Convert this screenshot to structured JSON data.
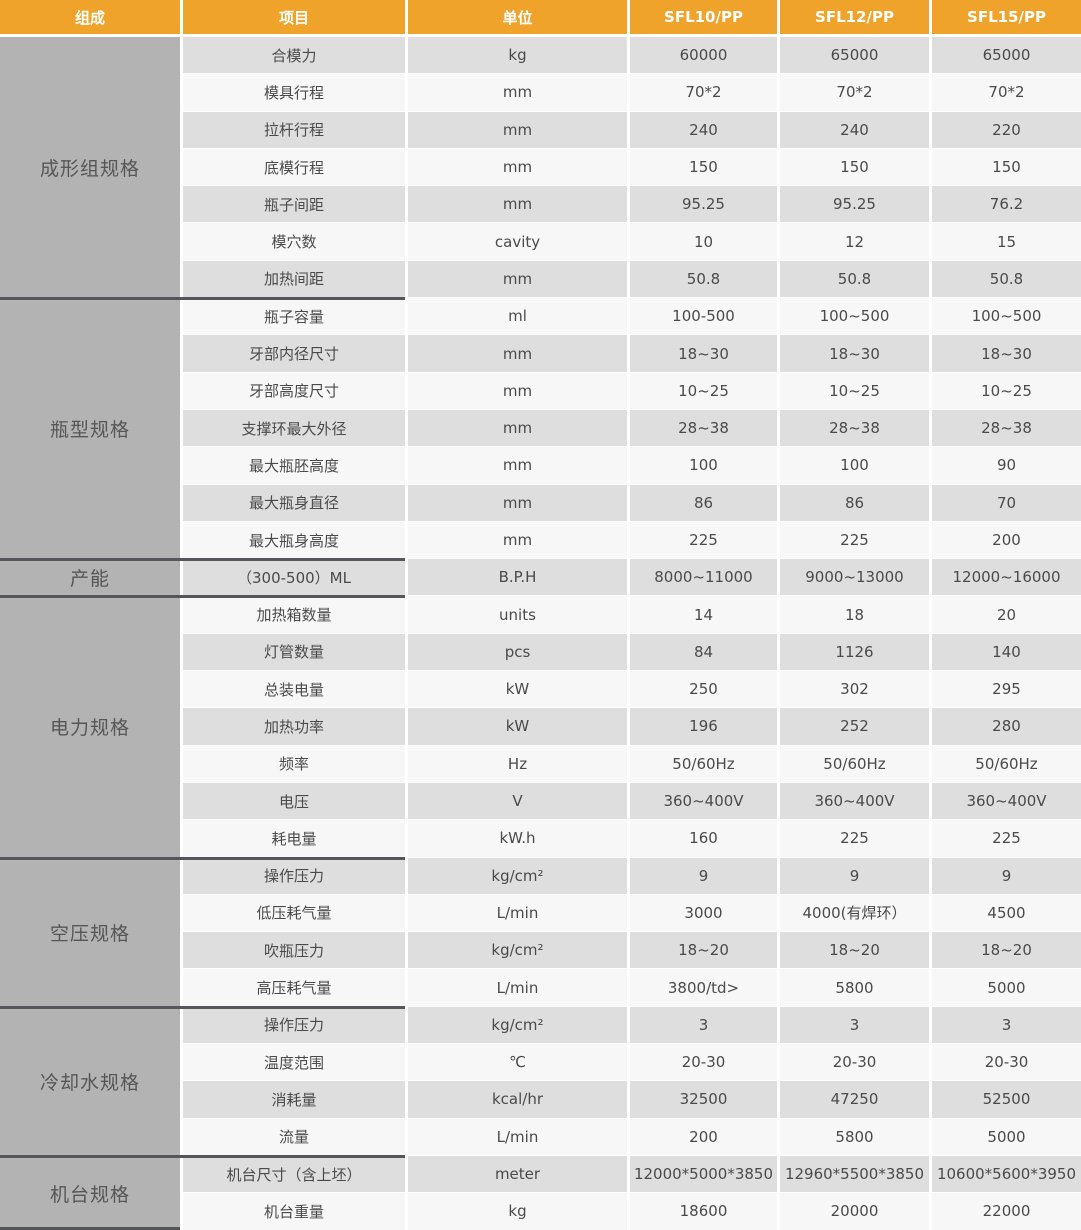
{
  "colors": {
    "header_bg": "#EFA32B",
    "header_text": "#FFFFFF",
    "group_bg": "#B3B3B3",
    "row_odd": "#DEDEDE",
    "row_even": "#F7F7F7",
    "cell_text": "#4A4A4A",
    "divider": "#55565C"
  },
  "header": {
    "columns": [
      "组成",
      "项目",
      "单位",
      "SFL10/PP",
      "SFL12/PP",
      "SFL15/PP"
    ]
  },
  "groups": [
    {
      "name": "成形组规格",
      "rows": [
        {
          "item": "合模力",
          "unit": "kg",
          "values": [
            "60000",
            "65000",
            "65000"
          ]
        },
        {
          "item": "模具行程",
          "unit": "mm",
          "values": [
            "70*2",
            "70*2",
            "70*2"
          ]
        },
        {
          "item": "拉杆行程",
          "unit": "mm",
          "values": [
            "240",
            "240",
            "220"
          ]
        },
        {
          "item": "底模行程",
          "unit": "mm",
          "values": [
            "150",
            "150",
            "150"
          ]
        },
        {
          "item": "瓶子间距",
          "unit": "mm",
          "values": [
            "95.25",
            "95.25",
            "76.2"
          ]
        },
        {
          "item": "模穴数",
          "unit": "cavity",
          "values": [
            "10",
            "12",
            "15"
          ]
        },
        {
          "item": "加热间距",
          "unit": "mm",
          "values": [
            "50.8",
            "50.8",
            "50.8"
          ]
        }
      ]
    },
    {
      "name": "瓶型规格",
      "rows": [
        {
          "item": "瓶子容量",
          "unit": "ml",
          "values": [
            "100-500",
            "100~500",
            "100~500"
          ]
        },
        {
          "item": "牙部内径尺寸",
          "unit": "mm",
          "values": [
            "18~30",
            "18~30",
            "18~30"
          ]
        },
        {
          "item": "牙部高度尺寸",
          "unit": "mm",
          "values": [
            "10~25",
            "10~25",
            "10~25"
          ]
        },
        {
          "item": "支撑环最大外径",
          "unit": "mm",
          "values": [
            "28~38",
            "28~38",
            "28~38"
          ]
        },
        {
          "item": "最大瓶胚高度",
          "unit": "mm",
          "values": [
            "100",
            "100",
            "90"
          ]
        },
        {
          "item": "最大瓶身直径",
          "unit": "mm",
          "values": [
            "86",
            "86",
            "70"
          ]
        },
        {
          "item": "最大瓶身高度",
          "unit": "mm",
          "values": [
            "225",
            "225",
            "200"
          ]
        }
      ]
    },
    {
      "name": "产能",
      "rows": [
        {
          "item": "（300-500）ML",
          "unit": "B.P.H",
          "values": [
            "8000~11000",
            "9000~13000",
            "12000~16000"
          ]
        }
      ]
    },
    {
      "name": "电力规格",
      "rows": [
        {
          "item": "加热箱数量",
          "unit": "units",
          "values": [
            "14",
            "18",
            "20"
          ]
        },
        {
          "item": "灯管数量",
          "unit": "pcs",
          "values": [
            "84",
            "1126",
            "140"
          ]
        },
        {
          "item": "总装电量",
          "unit": "kW",
          "values": [
            "250",
            "302",
            "295"
          ]
        },
        {
          "item": "加热功率",
          "unit": "kW",
          "values": [
            "196",
            "252",
            "280"
          ]
        },
        {
          "item": "频率",
          "unit": "Hz",
          "values": [
            "50/60Hz",
            "50/60Hz",
            "50/60Hz"
          ]
        },
        {
          "item": "电压",
          "unit": "V",
          "values": [
            "360~400V",
            "360~400V",
            "360~400V"
          ]
        },
        {
          "item": "耗电量",
          "unit": "kW.h",
          "values": [
            "160",
            "225",
            "225"
          ]
        }
      ]
    },
    {
      "name": "空压规格",
      "rows": [
        {
          "item": "操作压力",
          "unit": "kg/cm²",
          "values": [
            "9",
            "9",
            "9"
          ]
        },
        {
          "item": "低压耗气量",
          "unit": "L/min",
          "values": [
            "3000",
            "4000(有焊环）",
            "4500"
          ]
        },
        {
          "item": "吹瓶压力",
          "unit": "kg/cm²",
          "values": [
            "18~20",
            "18~20",
            "18~20"
          ]
        },
        {
          "item": "高压耗气量",
          "unit": "L/min",
          "values": [
            "3800/td>",
            "5800",
            "5000"
          ]
        }
      ]
    },
    {
      "name": "冷却水规格",
      "rows": [
        {
          "item": "操作压力",
          "unit": "kg/cm²",
          "values": [
            "3",
            "3",
            "3"
          ]
        },
        {
          "item": "温度范围",
          "unit": "℃",
          "values": [
            "20-30",
            "20-30",
            "20-30"
          ]
        },
        {
          "item": "消耗量",
          "unit": "kcal/hr",
          "values": [
            "32500",
            "47250",
            "52500"
          ]
        },
        {
          "item": "流量",
          "unit": "L/min",
          "values": [
            "200",
            "5800",
            "5000"
          ]
        }
      ]
    },
    {
      "name": "机台规格",
      "rows": [
        {
          "item": "机台尺寸（含上坯）",
          "unit": "meter",
          "values": [
            "12000*5000*3850",
            "12960*5500*3850",
            "10600*5600*3950"
          ]
        },
        {
          "item": "机台重量",
          "unit": "kg",
          "values": [
            "18600",
            "20000",
            "22000"
          ]
        }
      ]
    }
  ]
}
